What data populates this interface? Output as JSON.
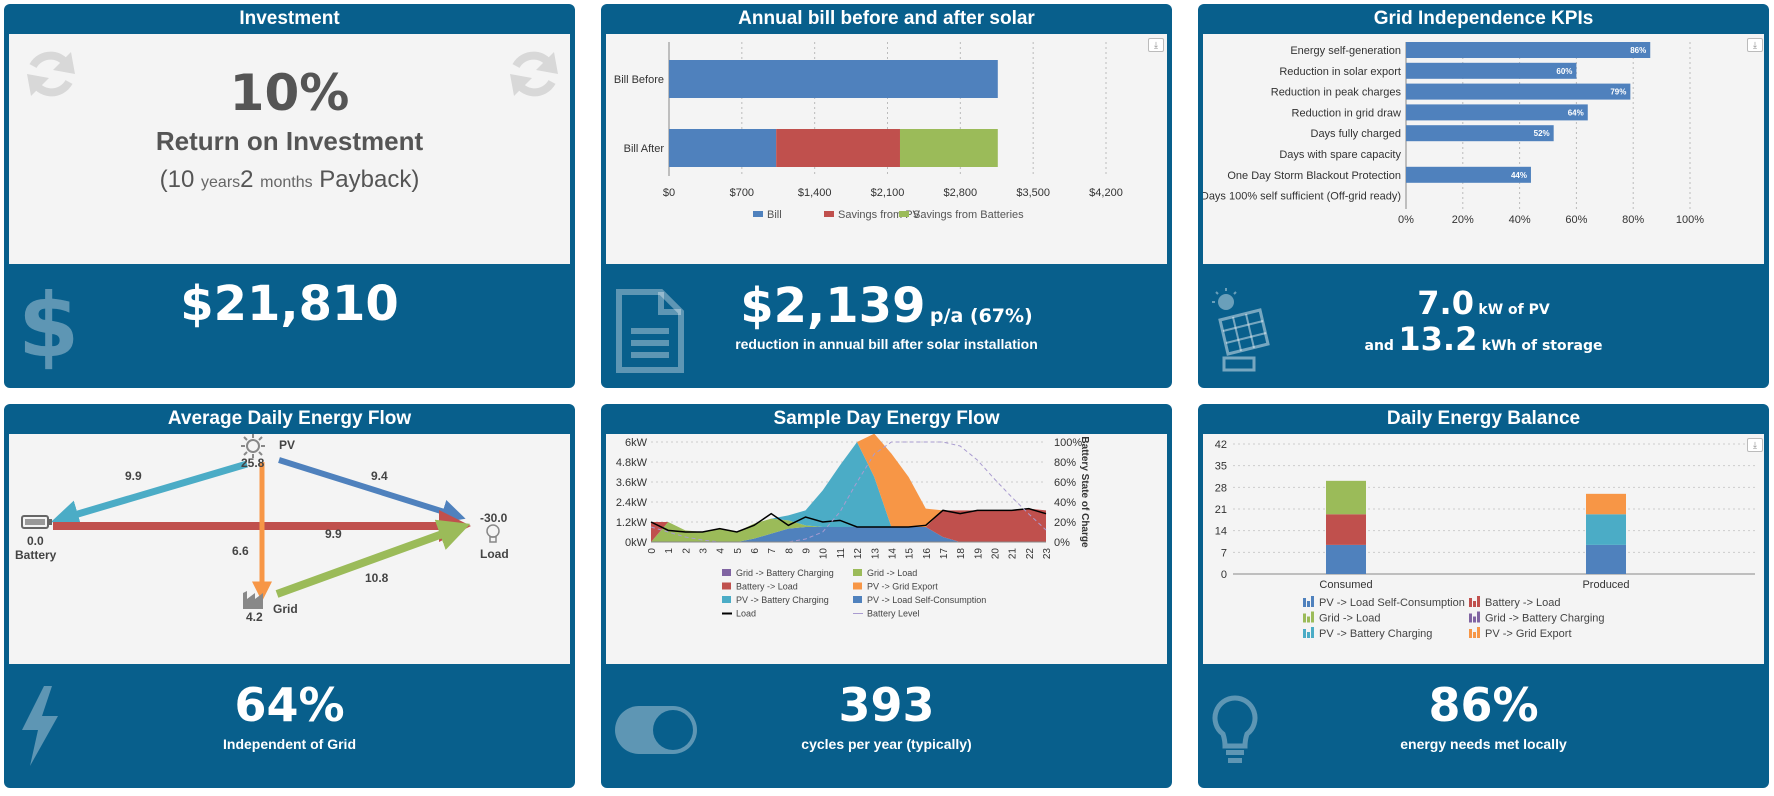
{
  "investment": {
    "title": "Investment",
    "roi_pct": "10%",
    "roi_label": "Return on Investment",
    "payback_open": "(10 ",
    "payback_years": "years",
    "payback_months_num": "2 ",
    "payback_months": "months",
    "payback_close": " Payback)",
    "total": "$21,810"
  },
  "bill": {
    "title": "Annual bill before and after solar",
    "amount": "$2,139",
    "unit": "p/a (67%)",
    "caption": "reduction in annual bill after solar installation",
    "colors": {
      "bill": "#4f81bd",
      "pv": "#c0504d",
      "batt": "#9bbb59"
    },
    "chart_data": {
      "type": "bar",
      "orientation": "horizontal",
      "stacked": true,
      "categories": [
        "Bill Before",
        "Bill After"
      ],
      "series": [
        {
          "name": "Bill",
          "values": [
            3160,
            1030
          ]
        },
        {
          "name": "Savings from PV",
          "values": [
            0,
            1190
          ]
        },
        {
          "name": "Savings from Batteries",
          "values": [
            0,
            940
          ]
        }
      ],
      "xticks": [
        "$0",
        "$700",
        "$1,400",
        "$2,100",
        "$2,800",
        "$3,500",
        "$4,200"
      ],
      "xlim": [
        0,
        4200
      ],
      "legend_position": "bottom"
    }
  },
  "kpi": {
    "title": "Grid Independence KPIs",
    "pv_value": "7.0",
    "pv_unit": "kW of PV",
    "and": "and",
    "storage_value": "13.2",
    "storage_unit": "kWh of storage",
    "bar_color": "#4f81bd",
    "chart_data": {
      "type": "bar",
      "orientation": "horizontal",
      "categories": [
        "Energy self-generation",
        "Reduction in solar export",
        "Reduction in peak charges",
        "Reduction in grid draw",
        "Days fully charged",
        "Days with spare capacity",
        "One Day Storm Blackout Protection",
        "Days 100% self sufficient (Off-grid ready)"
      ],
      "values": [
        86,
        60,
        79,
        64,
        52,
        0,
        44,
        0
      ],
      "labels": [
        "86%",
        "60%",
        "79%",
        "64%",
        "52%",
        "",
        "44%",
        ""
      ],
      "xticks": [
        "0%",
        "20%",
        "40%",
        "60%",
        "80%",
        "100%"
      ],
      "xlim": [
        0,
        100
      ]
    }
  },
  "flow": {
    "title": "Average Daily Energy Flow",
    "pv_label": "PV",
    "pv_value": "25.8",
    "battery_label": "Battery",
    "battery_value": "0.0",
    "load_label": "Load",
    "load_value": "-30.0",
    "grid_label": "Grid",
    "grid_value": "4.2",
    "edges": {
      "pv_battery": "9.9",
      "pv_load": "9.4",
      "battery_load": "9.9",
      "pv_grid": "6.6",
      "grid_load": "10.8"
    },
    "colors": {
      "pv_battery": "#4bacc6",
      "pv_load": "#4f81bd",
      "battery_load": "#c0504d",
      "pv_grid": "#f79646",
      "grid_load": "#9bbb59"
    },
    "pct": "64%",
    "caption": "Independent of Grid"
  },
  "sample": {
    "title": "Sample Day Energy Flow",
    "cycles": "393",
    "caption": "cycles per year (typically)",
    "y_right_label": "Battery State of Charge",
    "colors": {
      "grid_batt": "#8064a2",
      "grid_load": "#9bbb59",
      "batt_load": "#c0504d",
      "pv_export": "#f79646",
      "pv_batt": "#4bacc6",
      "pv_self": "#4f81bd",
      "load": "#000000",
      "battery_level": "#a99bd0"
    },
    "legend": [
      "Grid -> Battery Charging",
      "Grid -> Load",
      "Battery -> Load",
      "PV -> Grid Export",
      "PV -> Battery Charging",
      "PV -> Load Self-Consumption",
      "Load",
      "Battery Level"
    ],
    "chart_data": {
      "type": "area",
      "x": [
        0,
        1,
        2,
        3,
        4,
        5,
        6,
        7,
        8,
        9,
        10,
        11,
        12,
        13,
        14,
        15,
        16,
        17,
        18,
        19,
        20,
        21,
        22,
        23
      ],
      "yticks_left": [
        "0kW",
        "1.2kW",
        "2.4kW",
        "3.6kW",
        "4.8kW",
        "6kW"
      ],
      "yticks_right": [
        "0%",
        "20%",
        "40%",
        "60%",
        "80%",
        "100%"
      ],
      "ylim": [
        0,
        6
      ],
      "series": [
        {
          "name": "PV -> Load Self-Consumption",
          "values": [
            0,
            0,
            0,
            0,
            0,
            0,
            0.2,
            0.5,
            0.8,
            0.9,
            0.9,
            0.9,
            0.9,
            0.9,
            0.9,
            0.9,
            0.9,
            0.3,
            0,
            0,
            0,
            0,
            0,
            0
          ]
        },
        {
          "name": "PV -> Battery Charging",
          "values": [
            0,
            0,
            0,
            0,
            0,
            0,
            0,
            0,
            0.3,
            0.9,
            2.2,
            3.7,
            5.1,
            3.0,
            0,
            0,
            0,
            0,
            0,
            0,
            0,
            0,
            0,
            0
          ]
        },
        {
          "name": "PV -> Grid Export",
          "values": [
            0,
            0,
            0,
            0,
            0,
            0,
            0,
            0,
            0,
            0,
            0,
            0,
            0,
            2.6,
            4.4,
            3.0,
            1.1,
            0,
            0,
            0,
            0,
            0,
            0,
            0
          ]
        },
        {
          "name": "Grid -> Load",
          "values": [
            0,
            1.2,
            0.7,
            0.6,
            0.8,
            0.6,
            0.9,
            0.9,
            0.5,
            0.1,
            0,
            0,
            0,
            0,
            0,
            0,
            0,
            0,
            0,
            0,
            0,
            0,
            0,
            0
          ]
        },
        {
          "name": "Battery -> Load",
          "values": [
            1.2,
            0,
            0,
            0,
            0,
            0,
            0,
            0,
            0,
            0,
            0,
            0,
            0,
            0,
            0,
            0,
            0,
            1.6,
            1.9,
            1.9,
            1.9,
            1.9,
            2.0,
            1.9
          ]
        },
        {
          "name": "Grid -> Battery Charging",
          "values": [
            0,
            0,
            0,
            0,
            0,
            0,
            0,
            0,
            0,
            0,
            0,
            0,
            0,
            0,
            0,
            0,
            0,
            0,
            0,
            0,
            0,
            0,
            0,
            0
          ]
        },
        {
          "name": "Load",
          "values": [
            1.2,
            0.7,
            0.6,
            0.6,
            0.8,
            0.6,
            1.0,
            1.7,
            1.0,
            1.5,
            1.2,
            1.3,
            0.9,
            0.9,
            0.9,
            0.9,
            1.0,
            1.9,
            1.7,
            1.9,
            1.9,
            1.9,
            2.0,
            1.7
          ]
        },
        {
          "name": "Battery Level",
          "axis": "right",
          "values": [
            15,
            10,
            5,
            2,
            0,
            0,
            0,
            0,
            0,
            3,
            10,
            30,
            60,
            88,
            100,
            100,
            100,
            100,
            96,
            82,
            63,
            45,
            28,
            12
          ]
        }
      ]
    }
  },
  "balance": {
    "title": "Daily Energy Balance",
    "pct": "86%",
    "caption": "energy needs met locally",
    "colors": {
      "pv_self": "#4f81bd",
      "batt_load": "#c0504d",
      "grid_load": "#9bbb59",
      "grid_batt": "#8064a2",
      "pv_batt": "#4bacc6",
      "pv_export": "#f79646"
    },
    "legend": [
      "PV -> Load Self-Consumption",
      "Battery -> Load",
      "Grid -> Load",
      "Grid -> Battery Charging",
      "PV -> Battery Charging",
      "PV -> Grid Export"
    ],
    "chart_data": {
      "type": "bar",
      "stacked": true,
      "categories": [
        "Consumed",
        "Produced"
      ],
      "yticks": [
        "0",
        "7",
        "14",
        "21",
        "28",
        "35",
        "42"
      ],
      "ylim": [
        0,
        42
      ],
      "series": [
        {
          "name": "PV -> Load Self-Consumption",
          "values": [
            9.4,
            9.4
          ]
        },
        {
          "name": "Battery -> Load",
          "values": [
            9.9,
            0
          ]
        },
        {
          "name": "Grid -> Load",
          "values": [
            10.8,
            0
          ]
        },
        {
          "name": "Grid -> Battery Charging",
          "values": [
            0,
            0
          ]
        },
        {
          "name": "PV -> Battery Charging",
          "values": [
            0,
            9.9
          ]
        },
        {
          "name": "PV -> Grid Export",
          "values": [
            0,
            6.6
          ]
        }
      ]
    }
  }
}
